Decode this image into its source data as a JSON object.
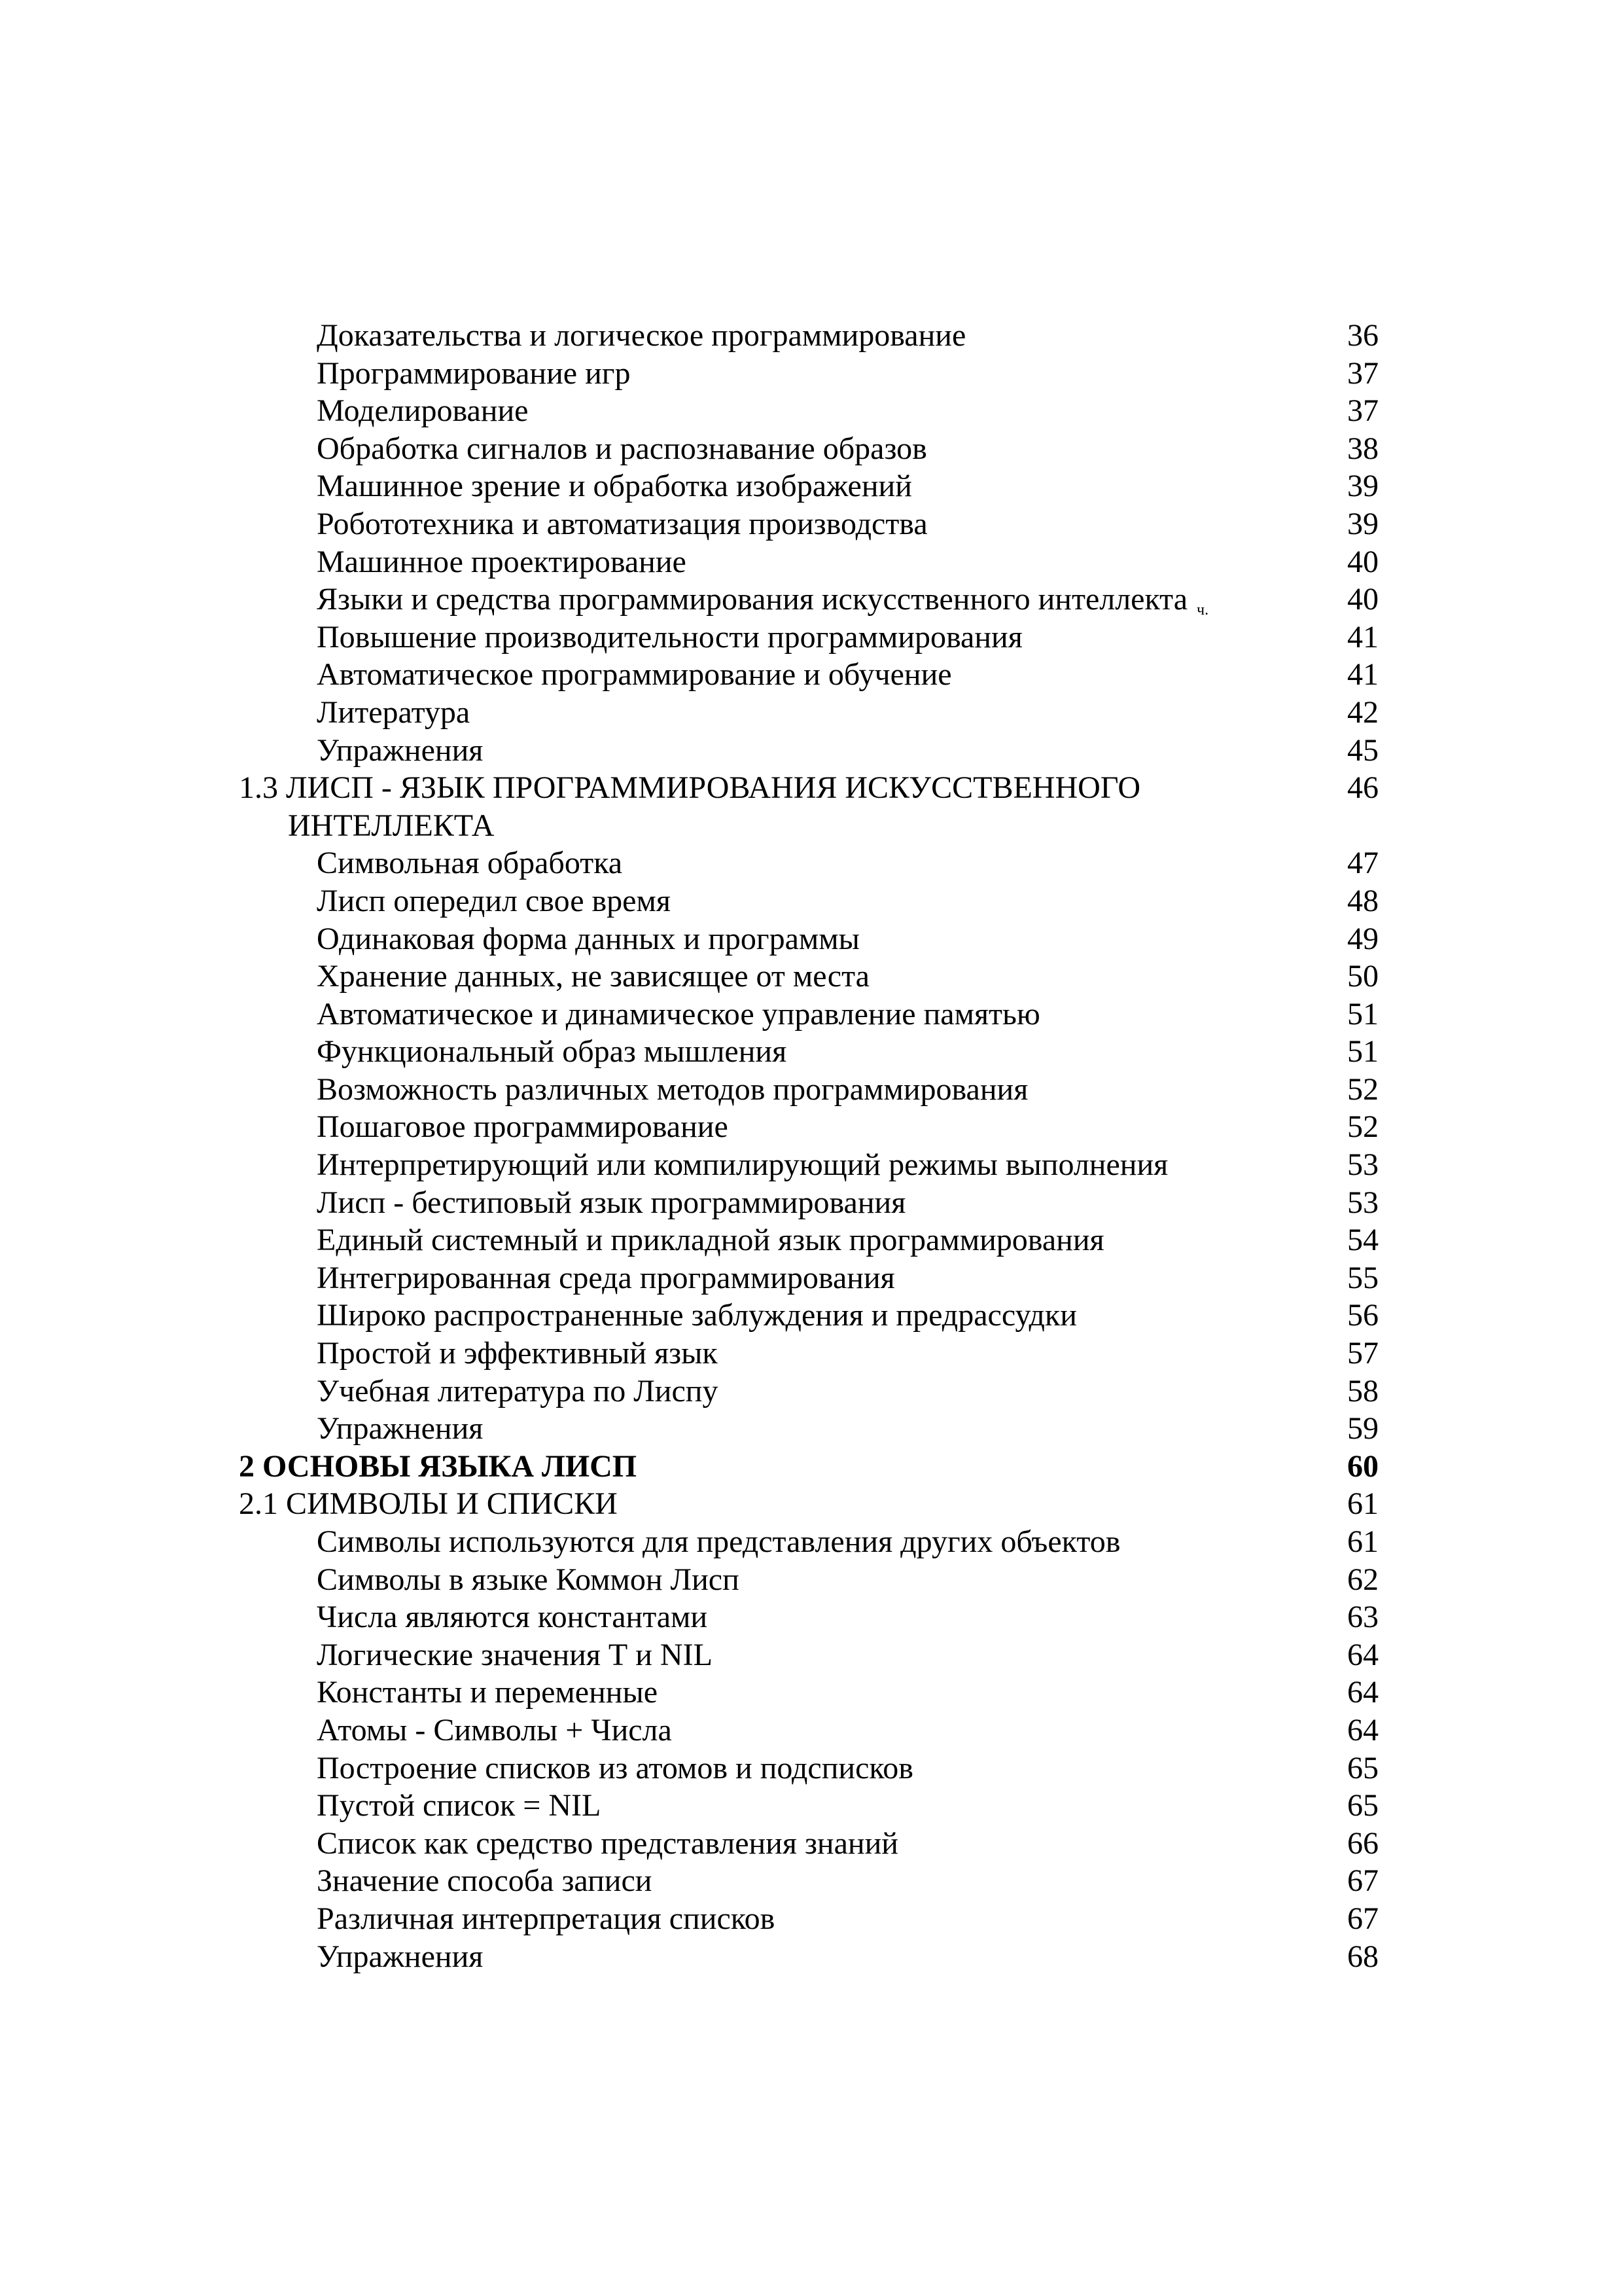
{
  "colors": {
    "ink": "#000000",
    "paper": "#ffffff"
  },
  "toc": {
    "entries": [
      {
        "level": "item",
        "text": "Доказательства и логическое программирование",
        "page": "36"
      },
      {
        "level": "item",
        "text": "Программирование игр",
        "page": "37"
      },
      {
        "level": "item",
        "text": "Моделирование",
        "page": "37"
      },
      {
        "level": "item",
        "text": "Обработка сигналов и распознавание образов",
        "page": "38"
      },
      {
        "level": "item",
        "text": "Машинное зрение и обработка изображений",
        "page": "39"
      },
      {
        "level": "item",
        "text": "Робототехника и автоматизация производства",
        "page": "39"
      },
      {
        "level": "item",
        "text": "Машинное проектирование",
        "page": "40"
      },
      {
        "level": "item",
        "text": "Языки и средства программирования искусственного интеллекта",
        "small_suffix": "ч.",
        "page": "40"
      },
      {
        "level": "item",
        "text": "Повышение производительности программирования",
        "page": "41"
      },
      {
        "level": "item",
        "text": "Автоматическое программирование и обучение",
        "page": "41"
      },
      {
        "level": "item",
        "text": "Литература",
        "page": "42"
      },
      {
        "level": "item",
        "text": "Упражнения",
        "page": "45"
      },
      {
        "level": "section",
        "text": "1.3 ЛИСП - ЯЗЫК ПРОГРАММИРОВАНИЯ ИСКУССТВЕННОГО",
        "text2": "ИНТЕЛЛЕКТА",
        "page": "46"
      },
      {
        "level": "item",
        "text": "Символьная обработка",
        "page": "47"
      },
      {
        "level": "item",
        "text": "Лисп опередил свое время",
        "page": "48"
      },
      {
        "level": "item",
        "text": "Одинаковая форма данных и программы",
        "page": "49"
      },
      {
        "level": "item",
        "text": "Хранение данных, не зависящее от места",
        "page": "50"
      },
      {
        "level": "item",
        "text": "Автоматическое и динамическое управление памятью",
        "page": "51"
      },
      {
        "level": "item",
        "text": "Функциональный образ мышления",
        "page": "51"
      },
      {
        "level": "item",
        "text": "Возможность различных методов программирования",
        "page": "52"
      },
      {
        "level": "item",
        "text": "Пошаговое программирование",
        "page": "52"
      },
      {
        "level": "item",
        "text": "Интерпретирующий или компилирующий режимы выполнения",
        "page": "53"
      },
      {
        "level": "item",
        "text": "Лисп - бестиповый язык программирования",
        "page": "53"
      },
      {
        "level": "item",
        "text": "Единый системный и прикладной язык программирования",
        "page": "54"
      },
      {
        "level": "item",
        "text": "Интегрированная среда программирования",
        "page": "55"
      },
      {
        "level": "item",
        "text": "Широко распространенные заблуждения и предрассудки",
        "page": "56"
      },
      {
        "level": "item",
        "text": "Простой и эффективный язык",
        "page": "57"
      },
      {
        "level": "item",
        "text": "Учебная литература по Лиспу",
        "page": "58"
      },
      {
        "level": "item",
        "text": "Упражнения",
        "page": "59"
      },
      {
        "level": "chapter",
        "text": "2 ОСНОВЫ ЯЗЫКА ЛИСП",
        "page": "60"
      },
      {
        "level": "section",
        "text": "2.1 СИМВОЛЫ И СПИСКИ",
        "page": "61"
      },
      {
        "level": "item",
        "text": "Символы используются для представления других объектов",
        "page": "61"
      },
      {
        "level": "item",
        "text": "Символы в языке Коммон Лисп",
        "page": "62"
      },
      {
        "level": "item",
        "text": "Числа являются константами",
        "page": "63"
      },
      {
        "level": "item",
        "text": "Логические значения Т и NIL",
        "page": "64"
      },
      {
        "level": "item",
        "text": "Константы и переменные",
        "page": "64"
      },
      {
        "level": "item",
        "text": "Атомы - Символы + Числа",
        "page": "64"
      },
      {
        "level": "item",
        "text": "Построение списков из атомов и подсписков",
        "page": "65"
      },
      {
        "level": "item",
        "text": "Пустой список = NIL",
        "page": "65"
      },
      {
        "level": "item",
        "text": "Список как средство представления знаний",
        "page": "66"
      },
      {
        "level": "item",
        "text": "Значение способа записи",
        "page": "67"
      },
      {
        "level": "item",
        "text": "Различная интерпретация списков",
        "page": "67"
      },
      {
        "level": "item",
        "text": "Упражнения",
        "page": "68"
      }
    ]
  }
}
